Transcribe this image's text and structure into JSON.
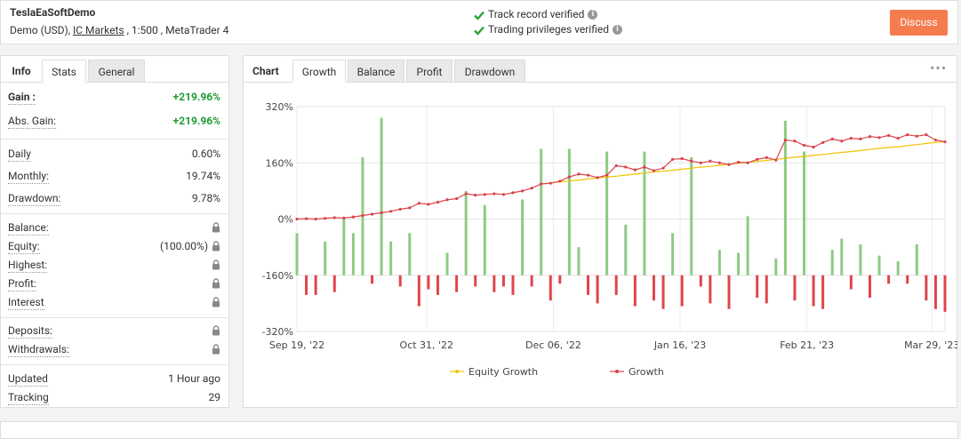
{
  "header": {
    "title": "TeslaEaSoftDemo",
    "subtitle": [
      "Demo (USD),",
      "IC Markets",
      ", 1:500 , MetaTrader 4"
    ],
    "verifications": [
      "Track record verified",
      "Trading privileges verified"
    ],
    "button": "Discuss"
  },
  "info_panel": {
    "tabs": [
      "Info",
      "Stats",
      "General"
    ],
    "active_tab": 1,
    "sections": [
      [
        {
          "label": "Gain :",
          "value": "+219.96%",
          "positive": true,
          "bold": true
        },
        {
          "label": "Abs. Gain:",
          "value": "+219.96%",
          "positive": true
        }
      ],
      [
        {
          "label": "Daily",
          "value": "0.60%"
        },
        {
          "label": "Monthly:",
          "value": "19.74%"
        },
        {
          "label": "Drawdown:",
          "value": "9.78%"
        }
      ],
      [
        {
          "label": "Balance:",
          "locked": true
        },
        {
          "label": "Equity:",
          "value": "(100.00%)",
          "locked": true
        },
        {
          "label": "Highest:",
          "locked": true
        },
        {
          "label": "Profit:",
          "locked": true
        },
        {
          "label": "Interest",
          "locked": true
        }
      ],
      [
        {
          "label": "Deposits:",
          "locked": true
        },
        {
          "label": "Withdrawals:",
          "locked": true
        }
      ],
      [
        {
          "label": "Updated",
          "value": "1 Hour ago"
        },
        {
          "label": "Tracking",
          "value": "29"
        }
      ]
    ]
  },
  "chart_panel": {
    "label": "Chart",
    "tabs": [
      "Growth",
      "Balance",
      "Profit",
      "Drawdown"
    ],
    "active_tab": 0
  },
  "chart_data": {
    "type": "line",
    "xlim": [
      0,
      69
    ],
    "xticks": [
      {
        "value": 0,
        "label": "Sep 19, '22"
      },
      {
        "value": 13.8,
        "label": "Oct 31, '22"
      },
      {
        "value": 27.3,
        "label": "Dec 06, '22"
      },
      {
        "value": 40.8,
        "label": "Jan 16, '23"
      },
      {
        "value": 54.3,
        "label": "Feb 21, '23"
      },
      {
        "value": 67.6,
        "label": "Mar 29, '23"
      }
    ],
    "ylim": [
      -320,
      320
    ],
    "yticks": [
      {
        "value": -320,
        "label": "-320%"
      },
      {
        "value": -160,
        "label": "-160%"
      },
      {
        "value": 0,
        "label": "0%"
      },
      {
        "value": 160,
        "label": "160%"
      },
      {
        "value": 320,
        "label": "320%"
      }
    ],
    "y2lim": [
      -2,
      6
    ],
    "grid": true,
    "legend": "bottom",
    "bars": {
      "axis": "y2",
      "positive_color": "#8dcb83",
      "negative_color": "#e0454c",
      "values": [
        1.5,
        -0.7,
        -0.7,
        1.2,
        -0.6,
        2.0,
        1.5,
        4.2,
        -0.3,
        5.6,
        1.2,
        -0.4,
        1.5,
        -1.1,
        -0.5,
        -0.7,
        0.8,
        -0.6,
        3.0,
        -0.4,
        2.5,
        -0.6,
        -0.4,
        -0.7,
        2.7,
        -0.4,
        4.5,
        -0.9,
        -0.3,
        4.5,
        1.0,
        -0.7,
        -1.0,
        4.4,
        -0.7,
        1.8,
        -1.1,
        4.4,
        -0.9,
        -1.2,
        1.5,
        -1.1,
        4.2,
        -0.4,
        -1.0,
        0.9,
        -1.2,
        0.8,
        2.1,
        -0.8,
        -1.0,
        0.6,
        5.5,
        -0.9,
        4.4,
        -1.1,
        -1.2,
        0.9,
        1.3,
        -0.5,
        1.1,
        -0.8,
        0.7,
        -0.3,
        0.5,
        -0.3,
        1.1,
        -0.9,
        -1.2,
        -1.3
      ]
    },
    "series": [
      {
        "name": "Equity Growth",
        "color": "#f2c200",
        "markers": false,
        "values": [
          null,
          null,
          null,
          null,
          null,
          null,
          null,
          null,
          null,
          null,
          null,
          null,
          null,
          null,
          null,
          null,
          null,
          null,
          null,
          null,
          null,
          null,
          null,
          null,
          null,
          null,
          100,
          103,
          106,
          108,
          111,
          114,
          117,
          120,
          122,
          125,
          128,
          131,
          134,
          136,
          139,
          142,
          145,
          148,
          150,
          153,
          156,
          159,
          162,
          164,
          167,
          170,
          173,
          176,
          178,
          181,
          184,
          187,
          190,
          192,
          195,
          198,
          201,
          204,
          206,
          209,
          212,
          215,
          218,
          219.96
        ]
      },
      {
        "name": "Growth",
        "color": "#d9434b",
        "markers": true,
        "values": [
          0,
          1,
          0,
          2,
          4,
          3,
          6,
          10,
          14,
          18,
          22,
          28,
          32,
          45,
          42,
          48,
          55,
          58,
          72,
          68,
          70,
          72,
          70,
          75,
          80,
          88,
          100,
          102,
          108,
          120,
          128,
          125,
          118,
          125,
          152,
          148,
          140,
          148,
          138,
          145,
          170,
          172,
          165,
          160,
          165,
          160,
          155,
          162,
          160,
          170,
          175,
          168,
          225,
          222,
          210,
          205,
          218,
          228,
          222,
          230,
          228,
          235,
          232,
          238,
          230,
          240,
          236,
          240,
          225,
          219.96
        ]
      }
    ]
  }
}
